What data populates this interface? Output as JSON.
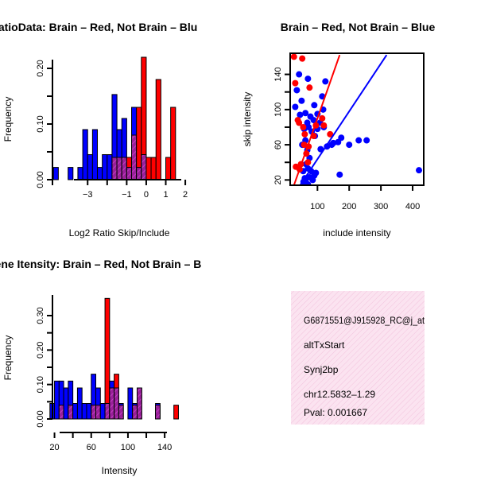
{
  "colors": {
    "red": "#ff0000",
    "blue": "#0000ff",
    "overlap": "#a020a0",
    "panel_bg": "#fbe1ef",
    "pval": "#8b0000"
  },
  "chart_data": [
    {
      "type": "bar",
      "title": "RatioData: Brain – Red, Not Brain – Blu",
      "xlabel": "Log2 Ratio Skip/Include",
      "ylabel": "Frequency",
      "xlim": [
        -4.8,
        2.2
      ],
      "ylim": [
        0,
        0.22
      ],
      "bin_width": 0.25,
      "bin_starts": [
        -4.75,
        -4.5,
        -4.25,
        -4.0,
        -3.75,
        -3.5,
        -3.25,
        -3.0,
        -2.75,
        -2.5,
        -2.25,
        -2.0,
        -1.75,
        -1.5,
        -1.25,
        -1.0,
        -0.75,
        -0.5,
        -0.25,
        0.0,
        0.25,
        0.5,
        0.75,
        1.0,
        1.25,
        1.5,
        1.75,
        2.0
      ],
      "series": [
        {
          "name": "Brain",
          "color": "red",
          "values": [
            0,
            0,
            0,
            0,
            0,
            0,
            0,
            0,
            0,
            0,
            0,
            0,
            0.04,
            0.04,
            0.04,
            0.04,
            0.08,
            0.13,
            0.22,
            0.04,
            0.04,
            0.18,
            0,
            0.04,
            0.13,
            0,
            0,
            0
          ]
        },
        {
          "name": "Not Brain",
          "color": "blue",
          "values": [
            0.022,
            0,
            0,
            0.022,
            0,
            0.022,
            0.09,
            0.045,
            0.09,
            0.022,
            0.045,
            0.045,
            0.153,
            0.09,
            0.11,
            0.022,
            0.13,
            0.022,
            0.045,
            0,
            0,
            0,
            0,
            0,
            0,
            0,
            0,
            0
          ]
        }
      ],
      "xticks": [
        -3,
        -1,
        0,
        1,
        2
      ],
      "xtick_labels": [
        "−3",
        "−1",
        "0",
        "1",
        "2"
      ],
      "xticks_minor": [
        -2
      ],
      "yticks": [
        0,
        0.1,
        0.2
      ],
      "ytick_labels": [
        "0.00",
        "0.10",
        "0.20"
      ],
      "yticks_minor": [
        0.05,
        0.15
      ]
    },
    {
      "type": "scatter",
      "title": "Brain – Red, Not Brain – Blue",
      "xlabel": "include intensity",
      "ylabel": "skip intensity",
      "xlim": [
        14,
        435
      ],
      "ylim": [
        14,
        164
      ],
      "xticks": [
        100,
        200,
        300,
        400
      ],
      "xtick_labels": [
        "100",
        "200",
        "300",
        "400"
      ],
      "yticks": [
        20,
        60,
        100,
        140
      ],
      "ytick_labels": [
        "20",
        "60",
        "100",
        "140"
      ],
      "yticks_minor": [
        40,
        80,
        120
      ],
      "series": [
        {
          "name": "Brain",
          "color": "red",
          "points": [
            [
              30,
              130
            ],
            [
              52,
              158
            ],
            [
              38,
              88
            ],
            [
              42,
              85
            ],
            [
              55,
              80
            ],
            [
              60,
              72
            ],
            [
              58,
              60
            ],
            [
              65,
              50
            ],
            [
              70,
              40
            ],
            [
              48,
              38
            ],
            [
              32,
              35
            ],
            [
              44,
              32
            ],
            [
              72,
              58
            ],
            [
              88,
              70
            ],
            [
              95,
              82
            ],
            [
              115,
              90
            ],
            [
              120,
              82
            ],
            [
              140,
              72
            ],
            [
              75,
              125
            ],
            [
              26,
              160
            ]
          ],
          "fit_line": [
            [
              22,
              10
            ],
            [
              170,
              162
            ]
          ]
        },
        {
          "name": "Not Brain",
          "color": "blue",
          "points": [
            [
              30,
              103
            ],
            [
              35,
              122
            ],
            [
              42,
              140
            ],
            [
              50,
              110
            ],
            [
              45,
              94
            ],
            [
              62,
              96
            ],
            [
              70,
              135
            ],
            [
              90,
              105
            ],
            [
              115,
              115
            ],
            [
              120,
              80
            ],
            [
              125,
              132
            ],
            [
              150,
              62
            ],
            [
              165,
              63
            ],
            [
              175,
              68
            ],
            [
              200,
              60
            ],
            [
              230,
              65
            ],
            [
              255,
              65
            ],
            [
              58,
              78
            ],
            [
              68,
              85
            ],
            [
              78,
              92
            ],
            [
              82,
              75
            ],
            [
              92,
              70
            ],
            [
              100,
              78
            ],
            [
              108,
              85
            ],
            [
              62,
              65
            ],
            [
              52,
              60
            ],
            [
              68,
              54
            ],
            [
              75,
              45
            ],
            [
              64,
              38
            ],
            [
              70,
              33
            ],
            [
              55,
              30
            ],
            [
              60,
              22
            ],
            [
              62,
              20
            ],
            [
              75,
              23
            ],
            [
              90,
              25
            ],
            [
              80,
              30
            ],
            [
              95,
              28
            ],
            [
              170,
              26
            ],
            [
              420,
              31
            ],
            [
              56,
              18
            ],
            [
              64,
              16
            ],
            [
              70,
              15
            ],
            [
              85,
              20
            ],
            [
              110,
              55
            ],
            [
              130,
              58
            ],
            [
              145,
              60
            ],
            [
              118,
              100
            ],
            [
              100,
              95
            ],
            [
              88,
              88
            ],
            [
              72,
              80
            ]
          ],
          "fit_line": [
            [
              38,
              10
            ],
            [
              318,
              162
            ]
          ]
        }
      ]
    },
    {
      "type": "bar",
      "title": "Gene Itensity: Brain – Red, Not Brain – B",
      "xlabel": "Intensity",
      "ylabel": "Frequency",
      "xlim": [
        10,
        165
      ],
      "ylim": [
        0,
        0.36
      ],
      "bin_width": 5,
      "bin_starts": [
        15,
        20,
        25,
        30,
        35,
        40,
        45,
        50,
        55,
        60,
        65,
        70,
        75,
        80,
        85,
        90,
        95,
        100,
        105,
        110,
        115,
        120,
        125,
        130,
        135,
        140,
        145,
        150,
        155
      ],
      "series": [
        {
          "name": "Brain",
          "color": "red",
          "values": [
            0,
            0,
            0.04,
            0,
            0.04,
            0,
            0,
            0,
            0,
            0.04,
            0.04,
            0,
            0.35,
            0.09,
            0.13,
            0.04,
            0,
            0,
            0.04,
            0.09,
            0,
            0,
            0,
            0.04,
            0,
            0,
            0,
            0.04,
            0
          ]
        },
        {
          "name": "Not Brain",
          "color": "blue",
          "values": [
            0.045,
            0.11,
            0.11,
            0.09,
            0.11,
            0.045,
            0.09,
            0.045,
            0.045,
            0.13,
            0.09,
            0.045,
            0.045,
            0.11,
            0.09,
            0.045,
            0,
            0.09,
            0.045,
            0.09,
            0,
            0,
            0,
            0.045,
            0,
            0,
            0,
            0,
            0
          ]
        }
      ],
      "xticks": [
        20,
        60,
        100,
        140
      ],
      "xtick_labels": [
        "20",
        "60",
        "100",
        "140"
      ],
      "xticks_minor": [
        40,
        80,
        120
      ],
      "yticks": [
        0,
        0.1,
        0.2,
        0.3
      ],
      "ytick_labels": [
        "0.00",
        "0.10",
        "0.20",
        "0.30"
      ],
      "yticks_minor": [
        0.05,
        0.15,
        0.25
      ]
    }
  ],
  "info_panel": {
    "probe_id": "G6871551@J915928_RC@j_at",
    "event_type": "altTxStart",
    "gene": "Synj2bp",
    "location": "chr12.5832–1.29",
    "pval": "Pval: 0.001667"
  }
}
